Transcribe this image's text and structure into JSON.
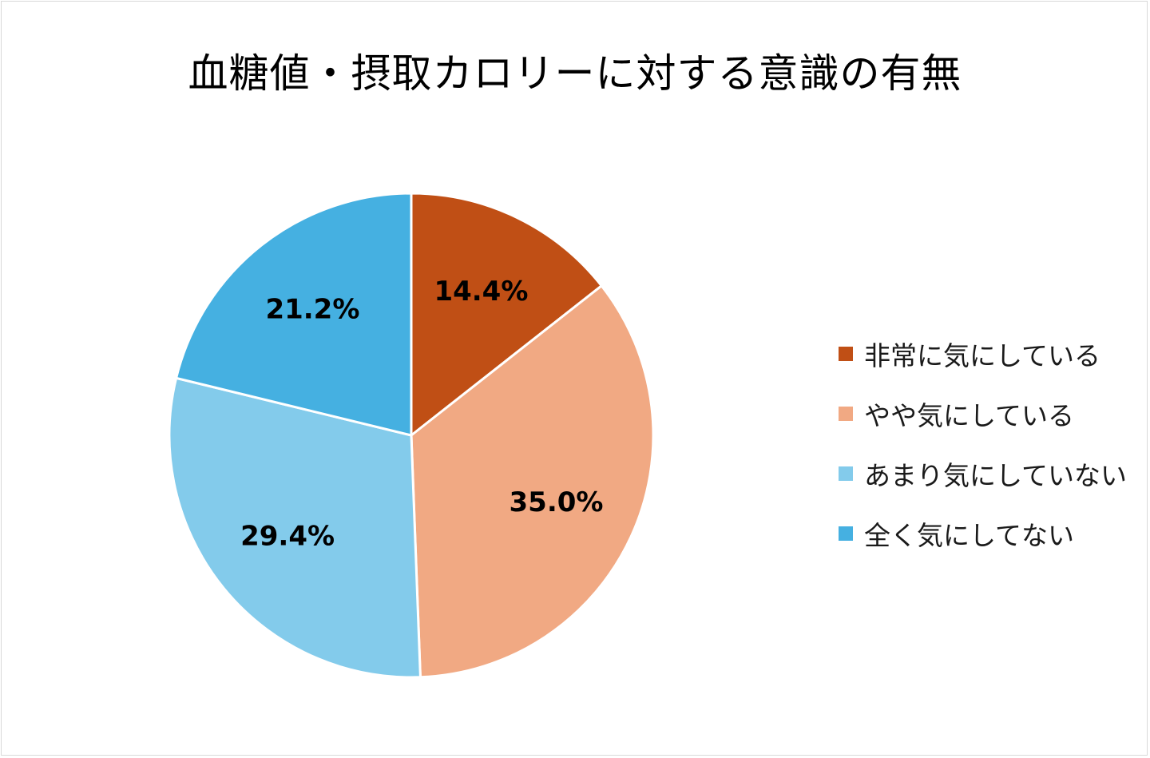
{
  "chart_data": {
    "type": "pie",
    "title": "血糖値・摂取カロリーに対する意識の有無",
    "categories": [
      "非常に気にしている",
      "やや気にしている",
      "あまり気にしていない",
      "全く気にしてない"
    ],
    "values": [
      14.4,
      35.0,
      29.4,
      21.2
    ],
    "value_labels": [
      "14.4%",
      "35.0%",
      "29.4%",
      "21.2%"
    ],
    "colors": [
      "#c04f15",
      "#f1a983",
      "#83cbeb",
      "#45b0e1"
    ],
    "start_angle_deg": 0,
    "direction": "clockwise",
    "legend_position": "right"
  }
}
